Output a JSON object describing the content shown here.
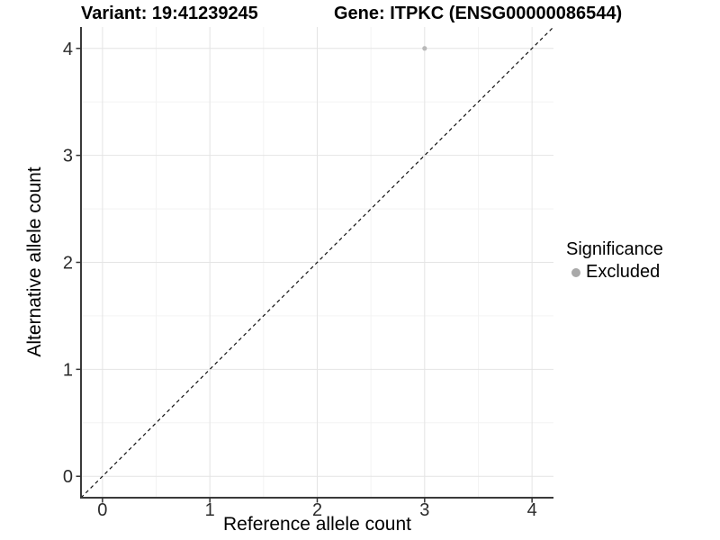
{
  "legend": {
    "title": "Significance",
    "items": [
      {
        "label": "Excluded",
        "color": "#a9a9a9"
      }
    ]
  },
  "chart_data": {
    "type": "scatter",
    "titles": [
      "Variant: 19:41239245",
      "Gene: ITPKC (ENSG00000086544)"
    ],
    "xlabel": "Reference allele count",
    "ylabel": "Alternative allele count",
    "xlim": [
      -0.2,
      4.2
    ],
    "ylim": [
      -0.2,
      4.2
    ],
    "x_ticks": [
      0,
      1,
      2,
      3,
      4
    ],
    "y_ticks": [
      0,
      1,
      2,
      3,
      4
    ],
    "minor_gridlines_x": [
      0.5,
      1.5,
      2.5,
      3.5
    ],
    "minor_gridlines_y": [
      0.5,
      1.5,
      2.5,
      3.5
    ],
    "grid": true,
    "legend_position": "right",
    "series": [
      {
        "name": "Excluded",
        "color": "#b9b9b9",
        "point_radius": 2.6,
        "points": [
          {
            "x": 3,
            "y": 4
          }
        ]
      }
    ],
    "reference_line": {
      "type": "identity",
      "from": [
        -0.2,
        -0.2
      ],
      "to": [
        4.2,
        4.2
      ],
      "style": "dashed",
      "color": "#111111"
    },
    "colors": {
      "major_grid": "#e4e4e4",
      "minor_grid": "#f3f3f3",
      "axis_line": "#3a3a3a",
      "tick_mark": "#333333",
      "tick_text": "#2b2b2b"
    }
  }
}
